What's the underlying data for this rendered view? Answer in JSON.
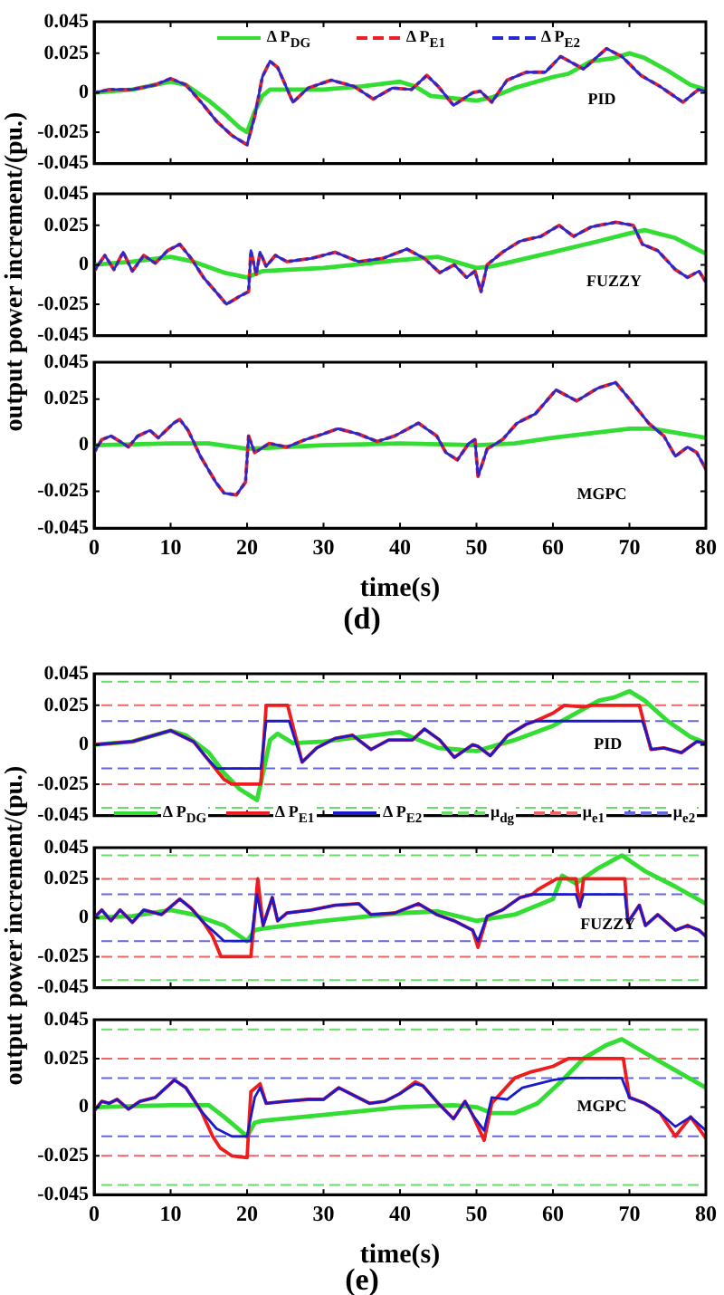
{
  "chart_data": [
    {
      "type": "line",
      "xlim": [
        0,
        80
      ],
      "xticks": [
        0,
        10,
        20,
        30,
        40,
        50,
        60,
        70,
        80
      ],
      "ylim": [
        -0.045,
        0.045
      ],
      "yticks": [
        -0.045,
        -0.025,
        0,
        0.025,
        0.045
      ],
      "tick_labels": "y",
      "legend": "top",
      "annotations": [
        "PID"
      ],
      "series": [
        {
          "name": "Δ P$_{DG}$",
          "color": "#33dd33",
          "line_style": "solid",
          "x": [
            0,
            5,
            10,
            12,
            15,
            17,
            19,
            20,
            21,
            22,
            23,
            25,
            30,
            35,
            40,
            42,
            44,
            46,
            50,
            52,
            55,
            60,
            62,
            65,
            68,
            70,
            72,
            75,
            78,
            80
          ],
          "values": [
            0,
            0.002,
            0.007,
            0.005,
            -0.005,
            -0.013,
            -0.022,
            -0.025,
            -0.012,
            -0.002,
            0.002,
            0.002,
            0.002,
            0.004,
            0.007,
            0.004,
            -0.002,
            -0.003,
            -0.005,
            -0.003,
            0.003,
            0.01,
            0.012,
            0.02,
            0.022,
            0.025,
            0.022,
            0.014,
            0.005,
            0.002
          ]
        },
        {
          "name": "Δ P$_{E1}$",
          "color": "#e8202a",
          "line_style": "dashed",
          "x": [
            0,
            2,
            5,
            8,
            10,
            12,
            14,
            16,
            18,
            20,
            21,
            22,
            23,
            24,
            25,
            26,
            28,
            31,
            34,
            36.5,
            39,
            41.5,
            43.5,
            45,
            47,
            49.5,
            50.5,
            52,
            54,
            56.5,
            59,
            61,
            64,
            67,
            69,
            71.5,
            74,
            77,
            79,
            80
          ],
          "values": [
            0,
            0.002,
            0.002,
            0.005,
            0.009,
            0.005,
            -0.006,
            -0.018,
            -0.027,
            -0.033,
            -0.015,
            0.01,
            0.02,
            0.016,
            0.005,
            -0.006,
            0.003,
            0.008,
            0.004,
            -0.004,
            0.003,
            0.002,
            0.011,
            0.004,
            -0.008,
            0,
            0.001,
            -0.006,
            0.008,
            0.013,
            0.013,
            0.023,
            0.015,
            0.028,
            0.023,
            0.011,
            0.004,
            -0.006,
            0.002,
            0.001
          ]
        },
        {
          "name": "Δ P$_{E2}$",
          "color": "#2a2acc",
          "line_style": "dashed",
          "x": [
            0,
            2,
            5,
            8,
            10,
            12,
            14,
            16,
            18,
            20,
            21,
            22,
            23,
            24,
            25,
            26,
            28,
            31,
            34,
            36.5,
            39,
            41.5,
            43.5,
            45,
            47,
            49.5,
            50.5,
            52,
            54,
            56.5,
            59,
            61,
            64,
            67,
            69,
            71.5,
            74,
            77,
            79,
            80
          ],
          "values": [
            0,
            0.002,
            0.002,
            0.005,
            0.009,
            0.005,
            -0.006,
            -0.018,
            -0.027,
            -0.033,
            -0.015,
            0.01,
            0.02,
            0.016,
            0.005,
            -0.006,
            0.003,
            0.008,
            0.004,
            -0.004,
            0.003,
            0.002,
            0.011,
            0.004,
            -0.008,
            0,
            0.001,
            -0.006,
            0.008,
            0.013,
            0.013,
            0.023,
            0.015,
            0.028,
            0.023,
            0.011,
            0.004,
            -0.006,
            0.002,
            0.001
          ]
        }
      ]
    },
    {
      "type": "line",
      "xlim": [
        0,
        80
      ],
      "xticks": [
        0,
        10,
        20,
        30,
        40,
        50,
        60,
        70,
        80
      ],
      "ylim": [
        -0.045,
        0.045
      ],
      "yticks": [
        -0.045,
        -0.025,
        0,
        0.025,
        0.045
      ],
      "tick_labels": "y",
      "ylabel": "output power increment/(pu.)",
      "annotations": [
        "FUZZY"
      ],
      "series": [
        {
          "color": "#33dd33",
          "line_style": "solid",
          "x": [
            0,
            5,
            10,
            13,
            17,
            20,
            22,
            30,
            40,
            45,
            50,
            52,
            60,
            66,
            70,
            72,
            76,
            80
          ],
          "values": [
            0,
            0.002,
            0.005,
            0.002,
            -0.005,
            -0.008,
            -0.004,
            -0.002,
            0.003,
            0.005,
            -0.002,
            -0.001,
            0.008,
            0.015,
            0.02,
            0.022,
            0.017,
            0.007
          ]
        },
        {
          "color": "#e8202a",
          "line_style": "dashed",
          "x": [
            0,
            1.4,
            2.6,
            3.8,
            5,
            6.5,
            8,
            9.6,
            11.2,
            12.7,
            14.3,
            15.9,
            17.3,
            19,
            20.2,
            20.5,
            21.2,
            21.7,
            22.5,
            23.7,
            25.2,
            28.4,
            31.5,
            34.6,
            37.7,
            40.9,
            43.2,
            45.2,
            47.1,
            48.7,
            49.8,
            50.6,
            51.4,
            53.4,
            55.7,
            58.4,
            60.8,
            62.7,
            65,
            68.2,
            70.5,
            71.7,
            73.7,
            76,
            77.6,
            79.1,
            80
          ],
          "values": [
            -0.004,
            0.006,
            -0.003,
            0.008,
            -0.004,
            0.006,
            0.001,
            0.009,
            0.013,
            0.004,
            -0.008,
            -0.017,
            -0.025,
            -0.02,
            -0.017,
            0.009,
            -0.006,
            0.008,
            -0.001,
            0.006,
            0.002,
            0.004,
            0.008,
            0.002,
            0.004,
            0.01,
            0.004,
            -0.005,
            0,
            -0.008,
            -0.004,
            -0.017,
            0,
            0.008,
            0.015,
            0.018,
            0.025,
            0.018,
            0.024,
            0.027,
            0.025,
            0.013,
            0.009,
            -0.003,
            -0.008,
            -0.004,
            -0.011
          ]
        },
        {
          "color": "#2a2acc",
          "line_style": "dashed",
          "x": [
            0,
            1.4,
            2.6,
            3.8,
            5,
            6.5,
            8,
            9.6,
            11.2,
            12.7,
            14.3,
            15.9,
            17.3,
            19,
            20.2,
            20.5,
            21.2,
            21.7,
            22.5,
            23.7,
            25.2,
            28.4,
            31.5,
            34.6,
            37.7,
            40.9,
            43.2,
            45.2,
            47.1,
            48.7,
            49.8,
            50.6,
            51.4,
            53.4,
            55.7,
            58.4,
            60.8,
            62.7,
            65,
            68.2,
            70.5,
            71.7,
            73.7,
            76,
            77.6,
            79.1,
            80
          ],
          "values": [
            -0.004,
            0.006,
            -0.003,
            0.008,
            -0.004,
            0.006,
            0.001,
            0.009,
            0.013,
            0.004,
            -0.008,
            -0.017,
            -0.025,
            -0.02,
            -0.017,
            0.009,
            -0.006,
            0.008,
            -0.001,
            0.006,
            0.002,
            0.004,
            0.008,
            0.002,
            0.004,
            0.01,
            0.004,
            -0.005,
            0,
            -0.008,
            -0.004,
            -0.017,
            0,
            0.008,
            0.015,
            0.018,
            0.025,
            0.018,
            0.024,
            0.027,
            0.025,
            0.013,
            0.009,
            -0.003,
            -0.008,
            -0.004,
            -0.011
          ]
        }
      ]
    },
    {
      "type": "line",
      "xlim": [
        0,
        80
      ],
      "xticks": [
        0,
        10,
        20,
        30,
        40,
        50,
        60,
        70,
        80
      ],
      "ylim": [
        -0.045,
        0.045
      ],
      "yticks": [
        -0.045,
        -0.025,
        0,
        0.025,
        0.045
      ],
      "xlabel": "time(s)",
      "annotations": [
        "MGPC",
        "(d)"
      ],
      "series": [
        {
          "color": "#33dd33",
          "line_style": "solid",
          "x": [
            0,
            10,
            15,
            20,
            30,
            40,
            50,
            55,
            60,
            70,
            73,
            80
          ],
          "values": [
            0,
            0.001,
            0.001,
            -0.002,
            0,
            0.001,
            0,
            0.001,
            0.004,
            0.009,
            0.009,
            0.004
          ]
        },
        {
          "color": "#e8202a",
          "line_style": "dashed",
          "x": [
            0,
            1,
            2.2,
            3.4,
            4.5,
            5.7,
            7.3,
            8.4,
            10.4,
            11.2,
            12.3,
            13.9,
            15.9,
            17,
            18.6,
            19.8,
            20.2,
            21,
            22.9,
            25.2,
            27.6,
            29.9,
            31.9,
            34.6,
            37,
            39.3,
            42.4,
            44.8,
            46,
            47.5,
            49,
            49.8,
            50.2,
            51.4,
            53.4,
            55.3,
            57.7,
            60.4,
            63.1,
            65.9,
            68.2,
            70.2,
            72.5,
            74.5,
            76,
            77.6,
            78.8,
            80
          ],
          "values": [
            -0.004,
            0.003,
            0.005,
            0.002,
            -0.001,
            0.005,
            0.008,
            0.004,
            0.012,
            0.014,
            0.008,
            -0.006,
            -0.02,
            -0.026,
            -0.027,
            -0.02,
            0.005,
            -0.004,
            0.001,
            -0.001,
            0.003,
            0.006,
            0.009,
            0.006,
            0.002,
            0.005,
            0.012,
            0.005,
            -0.004,
            -0.008,
            0.001,
            0.003,
            -0.017,
            -0.002,
            0.003,
            0.012,
            0.017,
            0.03,
            0.024,
            0.031,
            0.034,
            0.024,
            0.012,
            0.005,
            -0.006,
            -0.001,
            -0.004,
            -0.013
          ]
        },
        {
          "color": "#2a2acc",
          "line_style": "dashed",
          "x": [
            0,
            1,
            2.2,
            3.4,
            4.5,
            5.7,
            7.3,
            8.4,
            10.4,
            11.2,
            12.3,
            13.9,
            15.9,
            17,
            18.6,
            19.8,
            20.2,
            21,
            22.9,
            25.2,
            27.6,
            29.9,
            31.9,
            34.6,
            37,
            39.3,
            42.4,
            44.8,
            46,
            47.5,
            49,
            49.8,
            50.2,
            51.4,
            53.4,
            55.3,
            57.7,
            60.4,
            63.1,
            65.9,
            68.2,
            70.2,
            72.5,
            74.5,
            76,
            77.6,
            78.8,
            80
          ],
          "values": [
            -0.004,
            0.003,
            0.005,
            0.002,
            -0.001,
            0.005,
            0.008,
            0.004,
            0.012,
            0.014,
            0.008,
            -0.006,
            -0.02,
            -0.026,
            -0.027,
            -0.02,
            0.005,
            -0.004,
            0.001,
            -0.001,
            0.003,
            0.006,
            0.009,
            0.006,
            0.002,
            0.005,
            0.012,
            0.005,
            -0.004,
            -0.008,
            0.001,
            0.003,
            -0.017,
            -0.002,
            0.003,
            0.012,
            0.017,
            0.03,
            0.024,
            0.031,
            0.034,
            0.024,
            0.012,
            0.005,
            -0.006,
            -0.001,
            -0.004,
            -0.013
          ]
        }
      ]
    },
    {
      "type": "line",
      "xlim": [
        0,
        80
      ],
      "xticks": [
        0,
        10,
        20,
        30,
        40,
        50,
        60,
        70,
        80
      ],
      "ylim": [
        -0.045,
        0.045
      ],
      "yticks": [
        -0.045,
        -0.025,
        0,
        0.025,
        0.045
      ],
      "tick_labels": "y",
      "legend": "bottom",
      "annotations": [
        "PID"
      ],
      "ref_lines": [
        {
          "axis": "y",
          "value": 0.04,
          "label": "μ$_{dg}$",
          "color": "#66dd66",
          "line_style": "dashed"
        },
        {
          "axis": "y",
          "value": -0.04,
          "color": "#66dd66",
          "line_style": "dashed"
        },
        {
          "axis": "y",
          "value": 0.025,
          "label": "μ$_{e1}$",
          "color": "#ee6666",
          "line_style": "dashed"
        },
        {
          "axis": "y",
          "value": -0.025,
          "color": "#ee6666",
          "line_style": "dashed"
        },
        {
          "axis": "y",
          "value": 0.015,
          "label": "μ$_{e2}$",
          "color": "#6666dd",
          "line_style": "dashed"
        },
        {
          "axis": "y",
          "value": -0.015,
          "color": "#6666dd",
          "line_style": "dashed"
        }
      ],
      "series": [
        {
          "name": "Δ P$_{DG}$",
          "color": "#33dd33",
          "line_style": "solid",
          "x": [
            0,
            5,
            10,
            12,
            15,
            17,
            19,
            21.3,
            22,
            23,
            24,
            26,
            30,
            35,
            40,
            42,
            45,
            50,
            55,
            60,
            63,
            66,
            68,
            70,
            72,
            75,
            78,
            80
          ],
          "values": [
            0,
            0.002,
            0.009,
            0.006,
            -0.005,
            -0.018,
            -0.028,
            -0.035,
            -0.02,
            0.003,
            0.007,
            0.001,
            0.002,
            0.005,
            0.008,
            0.004,
            -0.002,
            -0.004,
            0.003,
            0.012,
            0.02,
            0.028,
            0.03,
            0.034,
            0.028,
            0.015,
            0.005,
            0.001
          ]
        },
        {
          "name": "Δ P$_{E1}$",
          "color": "#ee1c1c",
          "line_style": "solid",
          "x": [
            0,
            5,
            10,
            13,
            15,
            17,
            18,
            21.8,
            22.5,
            25.3,
            27.2,
            29.1,
            31.5,
            33.8,
            36.2,
            38.5,
            41.6,
            43.2,
            45.2,
            47.1,
            49.5,
            50.2,
            51.8,
            54.1,
            56.5,
            57.7,
            60,
            61.5,
            64,
            65,
            71.3,
            72.8,
            74.5,
            76.8,
            78.8,
            80
          ],
          "values": [
            0,
            0.002,
            0.009,
            0.002,
            -0.01,
            -0.022,
            -0.025,
            -0.025,
            0.025,
            0.025,
            -0.011,
            -0.002,
            0.004,
            0.006,
            -0.003,
            0.003,
            0.003,
            0.01,
            0.003,
            -0.008,
            0,
            -0.001,
            -0.007,
            0.006,
            0.013,
            0.015,
            0.02,
            0.025,
            0.024,
            0.025,
            0.025,
            -0.003,
            -0.002,
            -0.005,
            0.002,
            0.001
          ]
        },
        {
          "name": "Δ P$_{E2}$",
          "color": "#1a1acc",
          "line_style": "solid",
          "x": [
            0,
            5,
            10,
            13,
            14.5,
            16,
            21.8,
            22.5,
            25.5,
            27.2,
            29.1,
            31.5,
            33.8,
            36.2,
            38.5,
            41.6,
            43.2,
            45.2,
            47.1,
            49.5,
            50.2,
            51.8,
            54.1,
            56.5,
            57.7,
            71.7,
            72.9,
            74.5,
            76.8,
            78.8,
            80
          ],
          "values": [
            0,
            0.002,
            0.009,
            0.002,
            -0.007,
            -0.015,
            -0.015,
            0.015,
            0.015,
            -0.011,
            -0.002,
            0.004,
            0.006,
            -0.003,
            0.003,
            0.003,
            0.01,
            0.003,
            -0.008,
            0,
            -0.001,
            -0.007,
            0.006,
            0.013,
            0.015,
            0.015,
            -0.003,
            -0.002,
            -0.005,
            0.002,
            0.001
          ]
        }
      ]
    },
    {
      "type": "line",
      "xlim": [
        0,
        80
      ],
      "xticks": [
        0,
        10,
        20,
        30,
        40,
        50,
        60,
        70,
        80
      ],
      "ylim": [
        -0.045,
        0.045
      ],
      "yticks": [
        -0.045,
        -0.025,
        0,
        0.025,
        0.045
      ],
      "tick_labels": "y",
      "ylabel": "output power increment/(pu.)",
      "annotations": [
        "FUZZY"
      ],
      "ref_lines": [
        {
          "axis": "y",
          "value": 0.04,
          "color": "#66dd66",
          "line_style": "dashed"
        },
        {
          "axis": "y",
          "value": -0.04,
          "color": "#66dd66",
          "line_style": "dashed"
        },
        {
          "axis": "y",
          "value": 0.025,
          "color": "#ee6666",
          "line_style": "dashed"
        },
        {
          "axis": "y",
          "value": -0.025,
          "color": "#ee6666",
          "line_style": "dashed"
        },
        {
          "axis": "y",
          "value": 0.015,
          "color": "#6666dd",
          "line_style": "dashed"
        },
        {
          "axis": "y",
          "value": -0.015,
          "color": "#6666dd",
          "line_style": "dashed"
        }
      ],
      "series": [
        {
          "color": "#33dd33",
          "line_style": "solid",
          "x": [
            0,
            5,
            10,
            13,
            17,
            20,
            21,
            22,
            30,
            40,
            45,
            50,
            55,
            60,
            61.2,
            63,
            66,
            69,
            72,
            76,
            80
          ],
          "values": [
            0,
            0.001,
            0.005,
            0.002,
            -0.005,
            -0.015,
            -0.008,
            -0.007,
            -0.002,
            0.003,
            0.004,
            -0.002,
            0.002,
            0.012,
            0.027,
            0.022,
            0.032,
            0.04,
            0.03,
            0.02,
            0.009
          ]
        },
        {
          "color": "#ee1c1c",
          "line_style": "solid",
          "x": [
            0,
            1,
            2.2,
            3.4,
            5,
            6.5,
            8.8,
            11.2,
            12.7,
            14.3,
            15.5,
            16.6,
            20.5,
            21.4,
            22.1,
            23.3,
            24,
            25.2,
            28.4,
            31.5,
            34.6,
            36.2,
            39.3,
            42.4,
            44.8,
            47.1,
            49.5,
            50.2,
            51.4,
            53.4,
            55.7,
            57.3,
            58,
            60.5,
            63,
            63.5,
            64,
            69.4,
            69.8,
            71.3,
            72.1,
            73.7,
            76,
            77.6,
            79.1,
            80
          ],
          "values": [
            0,
            0.005,
            -0.002,
            0.005,
            -0.003,
            0.005,
            0.002,
            0.012,
            0.006,
            -0.003,
            -0.012,
            -0.025,
            -0.025,
            0.025,
            -0.005,
            0.013,
            -0.002,
            0.003,
            0.005,
            0.008,
            0.009,
            0.002,
            0.003,
            0.009,
            0.002,
            -0.002,
            -0.008,
            -0.019,
            0.001,
            0.005,
            0.013,
            0.015,
            0.018,
            0.025,
            0.025,
            0.007,
            0.025,
            0.025,
            -0.003,
            0.008,
            -0.005,
            0.002,
            -0.008,
            -0.005,
            -0.008,
            -0.012
          ]
        },
        {
          "color": "#1a1acc",
          "line_style": "solid",
          "x": [
            0,
            1,
            2.2,
            3.4,
            5,
            6.5,
            8.8,
            11.2,
            12.7,
            14.3,
            15.9,
            17,
            20.5,
            21.3,
            22.1,
            23.3,
            24,
            25.2,
            28.4,
            31.5,
            34.6,
            36.2,
            39.3,
            42.4,
            44.8,
            47.1,
            49.5,
            50.2,
            51.4,
            53.4,
            55.7,
            57.3,
            63,
            63.5,
            64,
            69.4,
            69.8,
            71.3,
            72.1,
            73.7,
            76,
            77.6,
            79.1,
            80
          ],
          "values": [
            0,
            0.005,
            -0.002,
            0.005,
            -0.003,
            0.005,
            0.002,
            0.012,
            0.006,
            -0.003,
            -0.01,
            -0.015,
            -0.015,
            0.015,
            -0.005,
            0.013,
            -0.002,
            0.003,
            0.005,
            0.008,
            0.009,
            0.002,
            0.003,
            0.009,
            0.002,
            -0.002,
            -0.008,
            -0.015,
            0.001,
            0.005,
            0.013,
            0.015,
            0.015,
            0.007,
            0.015,
            0.015,
            -0.003,
            0.008,
            -0.005,
            0.002,
            -0.008,
            -0.005,
            -0.008,
            -0.012
          ]
        }
      ]
    },
    {
      "type": "line",
      "xlim": [
        0,
        80
      ],
      "xticks": [
        0,
        10,
        20,
        30,
        40,
        50,
        60,
        70,
        80
      ],
      "ylim": [
        -0.045,
        0.045
      ],
      "yticks": [
        -0.045,
        -0.025,
        0,
        0.025,
        0.045
      ],
      "xlabel": "time(s)",
      "annotations": [
        "MGPC",
        "(e)"
      ],
      "ref_lines": [
        {
          "axis": "y",
          "value": 0.04,
          "color": "#66dd66",
          "line_style": "dashed"
        },
        {
          "axis": "y",
          "value": -0.04,
          "color": "#66dd66",
          "line_style": "dashed"
        },
        {
          "axis": "y",
          "value": 0.025,
          "color": "#ee6666",
          "line_style": "dashed"
        },
        {
          "axis": "y",
          "value": -0.025,
          "color": "#ee6666",
          "line_style": "dashed"
        },
        {
          "axis": "y",
          "value": 0.015,
          "color": "#6666dd",
          "line_style": "dashed"
        },
        {
          "axis": "y",
          "value": -0.015,
          "color": "#6666dd",
          "line_style": "dashed"
        }
      ],
      "series": [
        {
          "color": "#33dd33",
          "line_style": "solid",
          "x": [
            0,
            10,
            15,
            17,
            20,
            21,
            22,
            30,
            40,
            47,
            50,
            52,
            55,
            58,
            61,
            64,
            67,
            69,
            72,
            76,
            80
          ],
          "values": [
            0,
            0.001,
            0.001,
            -0.005,
            -0.015,
            -0.008,
            -0.007,
            -0.004,
            0,
            0.001,
            0,
            -0.003,
            -0.003,
            0.002,
            0.013,
            0.025,
            0.032,
            0.035,
            0.028,
            0.019,
            0.01
          ]
        },
        {
          "color": "#ee1c1c",
          "line_style": "solid",
          "x": [
            0,
            1,
            2,
            3,
            4.5,
            6,
            8,
            10.5,
            12,
            14,
            15.5,
            16.5,
            18,
            20,
            20.5,
            21.7,
            22.5,
            25,
            28,
            30,
            32,
            34,
            36,
            38,
            40,
            42,
            43,
            45,
            47,
            48.5,
            49.5,
            51,
            52,
            55,
            57,
            58,
            60,
            62,
            69.2,
            70,
            72,
            74,
            76,
            78,
            80
          ],
          "values": [
            -0.002,
            0.003,
            0.002,
            0.004,
            -0.001,
            0.003,
            0.005,
            0.014,
            0.01,
            -0.002,
            -0.015,
            -0.021,
            -0.025,
            -0.026,
            0.008,
            0.012,
            0.002,
            0.003,
            0.004,
            0.004,
            0.01,
            0.006,
            0.002,
            0.003,
            0.007,
            0.013,
            0.011,
            0.002,
            -0.006,
            0.003,
            -0.004,
            -0.017,
            0.002,
            0.015,
            0.018,
            0.019,
            0.021,
            0.025,
            0.025,
            0.005,
            0.002,
            -0.003,
            -0.015,
            -0.005,
            -0.016
          ]
        },
        {
          "color": "#1a1acc",
          "line_style": "solid",
          "x": [
            0,
            1,
            2,
            3,
            4.5,
            6,
            8,
            10.5,
            12,
            14,
            16,
            18,
            20,
            21,
            21.7,
            22.5,
            25,
            28,
            30,
            32,
            34,
            36,
            38,
            40,
            42,
            43,
            45,
            47,
            48.5,
            49.5,
            51,
            52,
            54,
            56,
            58,
            60,
            62,
            69,
            70,
            72,
            74,
            76,
            78,
            80
          ],
          "values": [
            -0.002,
            0.003,
            0.002,
            0.004,
            -0.001,
            0.003,
            0.005,
            0.014,
            0.01,
            -0.002,
            -0.011,
            -0.015,
            -0.015,
            0.005,
            0.01,
            0.002,
            0.003,
            0.004,
            0.004,
            0.01,
            0.006,
            0.002,
            0.003,
            0.007,
            0.012,
            0.011,
            0.002,
            -0.006,
            0.003,
            -0.004,
            -0.012,
            0.005,
            0.004,
            0.01,
            0.012,
            0.014,
            0.015,
            0.015,
            0.005,
            0.002,
            -0.003,
            -0.01,
            -0.005,
            -0.012
          ]
        }
      ]
    }
  ]
}
